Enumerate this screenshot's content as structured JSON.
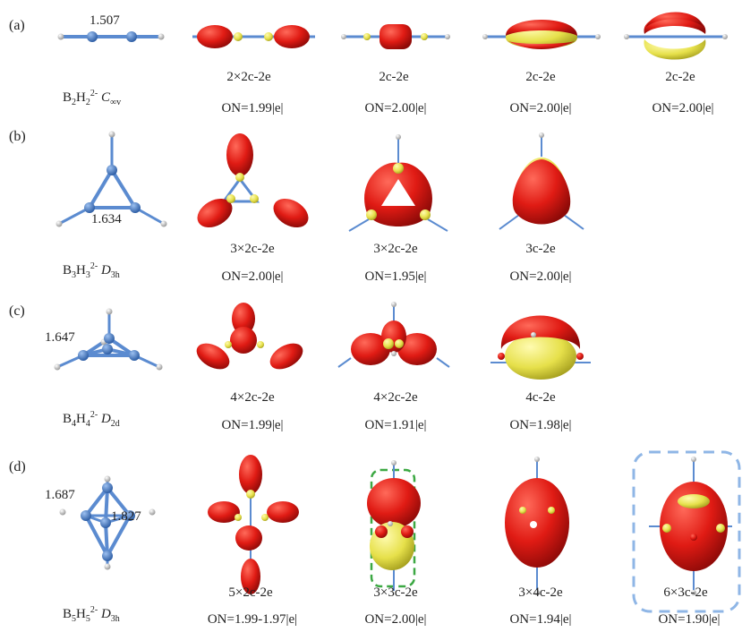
{
  "colors": {
    "lobe_red": "#e01b14",
    "lobe_yellow": "#e6e04a",
    "bond_blue": "#5b8bd0",
    "atom_blue": "#3f6fb8",
    "hydrogen": "#e8e8e8",
    "highlight_dashed": "#8fb6e6",
    "highlight_green": "#3ca843"
  },
  "rows": [
    {
      "panel": "(a)",
      "bond_length": "1.507",
      "molecule": {
        "base": "B",
        "n1": "2",
        "h": "H",
        "n2": "2",
        "charge": "2-",
        "sym": "C",
        "sym_sub": "∞v"
      },
      "orbitals": [
        {
          "type": "2×2c-2e",
          "on": "ON=1.99|e|"
        },
        {
          "type": "2c-2e",
          "on": "ON=2.00|e|"
        },
        {
          "type": "2c-2e",
          "on": "ON=2.00|e|"
        },
        {
          "type": "2c-2e",
          "on": "ON=2.00|e|"
        }
      ]
    },
    {
      "panel": "(b)",
      "bond_length": "1.634",
      "molecule": {
        "base": "B",
        "n1": "3",
        "h": "H",
        "n2": "3",
        "charge": "2-",
        "sym": "D",
        "sym_sub": "3h"
      },
      "orbitals": [
        {
          "type": "3×2c-2e",
          "on": "ON=2.00|e|"
        },
        {
          "type": "3×2c-2e",
          "on": "ON=1.95|e|"
        },
        {
          "type": "3c-2e",
          "on": "ON=2.00|e|"
        }
      ]
    },
    {
      "panel": "(c)",
      "bond_length": "1.647",
      "molecule": {
        "base": "B",
        "n1": "4",
        "h": "H",
        "n2": "4",
        "charge": "2-",
        "sym": "D",
        "sym_sub": "2d"
      },
      "orbitals": [
        {
          "type": "4×2c-2e",
          "on": "ON=1.99|e|"
        },
        {
          "type": "4×2c-2e",
          "on": "ON=1.91|e|"
        },
        {
          "type": "4c-2e",
          "on": "ON=1.98|e|"
        }
      ]
    },
    {
      "panel": "(d)",
      "bond_length": "1.687",
      "bond_length_2": "1.827",
      "molecule": {
        "base": "B",
        "n1": "5",
        "h": "H",
        "n2": "5",
        "charge": "2-",
        "sym": "D",
        "sym_sub": "3h"
      },
      "orbitals": [
        {
          "type": "5×2c-2e",
          "on": "ON=1.99-1.97|e|"
        },
        {
          "type": "3×3c-2e",
          "on": "ON=2.00|e|"
        },
        {
          "type": "3×4c-2e",
          "on": "ON=1.94|e|"
        },
        {
          "type": "6×3c-2e",
          "on": "ON=1.90|e|"
        }
      ]
    }
  ]
}
